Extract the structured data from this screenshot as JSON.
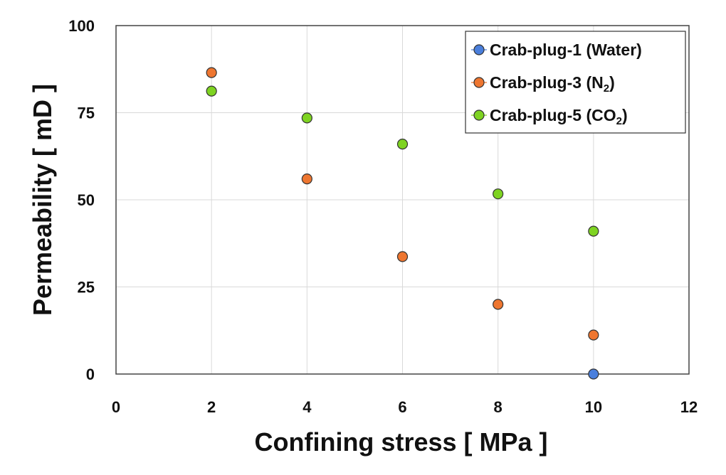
{
  "chart_data": {
    "type": "scatter",
    "title": "",
    "xlabel": "Confining stress [ MPa ]",
    "ylabel": "Permeability [ mD ]",
    "xlim": [
      0,
      12
    ],
    "ylim": [
      0,
      100
    ],
    "xticks": [
      0,
      2,
      4,
      6,
      8,
      10,
      12
    ],
    "yticks": [
      0,
      25,
      50,
      75,
      100
    ],
    "grid": true,
    "legend_position": "top-right",
    "series": [
      {
        "name": "Crab-plug-1 (Water)",
        "label_main": "Crab-plug-1 (Water)",
        "label_sub": "",
        "label_end": "",
        "color": "#4a7fdc",
        "x": [
          10
        ],
        "y": [
          0
        ]
      },
      {
        "name": "Crab-plug-3 (N2)",
        "label_main": "Crab-plug-3 (N",
        "label_sub": "2",
        "label_end": ")",
        "color": "#ee7630",
        "x": [
          2,
          4,
          6,
          8,
          10
        ],
        "y": [
          86.5,
          56,
          33.7,
          20,
          11.2
        ]
      },
      {
        "name": "Crab-plug-5 (CO2)",
        "label_main": "Crab-plug-5 (CO",
        "label_sub": "2",
        "label_end": ")",
        "color": "#7ed321",
        "x": [
          2,
          4,
          6,
          8,
          10
        ],
        "y": [
          81.2,
          73.5,
          66,
          51.7,
          41
        ]
      }
    ]
  }
}
